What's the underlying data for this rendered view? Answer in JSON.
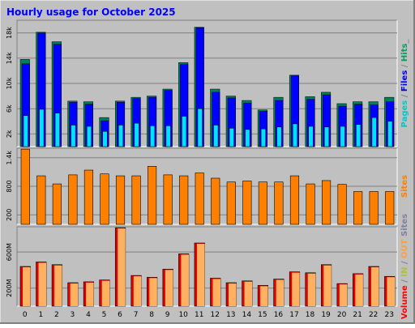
{
  "chart_data": {
    "type": "bar",
    "title": "Hourly usage for October 2025",
    "categories": [
      "0",
      "1",
      "2",
      "3",
      "4",
      "5",
      "6",
      "7",
      "8",
      "9",
      "10",
      "11",
      "12",
      "13",
      "14",
      "15",
      "16",
      "17",
      "18",
      "19",
      "20",
      "21",
      "22",
      "23"
    ],
    "panels": [
      {
        "name": "hits-files-pages",
        "ylim": [
          0,
          20000
        ],
        "yticks": [
          "2k",
          "6k",
          "10k",
          "14k",
          "18k"
        ],
        "ytick_values": [
          2000,
          6000,
          10000,
          14000,
          18000
        ],
        "side_label": [
          {
            "text": "Pages",
            "color": "#00c8c8"
          },
          {
            "text": " / ",
            "color": "#8080a0"
          },
          {
            "text": "Files",
            "color": "#0000ff"
          },
          {
            "text": " / ",
            "color": "#8080a0"
          },
          {
            "text": "Hits",
            "color": "#00a060"
          },
          {
            "text": "_",
            "color": "#8080a0"
          }
        ],
        "series": [
          {
            "name": "Hits",
            "color": "#00805a",
            "values": [
              13800,
              18100,
              16600,
              7200,
              7100,
              4600,
              7200,
              7800,
              8000,
              9100,
              13300,
              18900,
              9100,
              8000,
              7300,
              5800,
              7800,
              11300,
              7900,
              8600,
              6800,
              7100,
              7100,
              7800
            ]
          },
          {
            "name": "Files",
            "color": "#0000ff",
            "values": [
              13100,
              18000,
              16200,
              7000,
              6700,
              4100,
              7000,
              7600,
              7800,
              8900,
              13000,
              18800,
              8600,
              7700,
              6900,
              5600,
              7300,
              11200,
              7500,
              8200,
              6400,
              6700,
              6600,
              7100
            ]
          },
          {
            "name": "Pages",
            "color": "#00e0ff",
            "values": [
              4900,
              5900,
              5300,
              3400,
              3200,
              2400,
              3400,
              3700,
              3300,
              3300,
              4800,
              6000,
              3400,
              2900,
              2700,
              2800,
              3100,
              3600,
              3200,
              3100,
              3200,
              3500,
              4600,
              4000
            ]
          }
        ]
      },
      {
        "name": "sites",
        "ylim": [
          0,
          1600
        ],
        "yticks": [
          "200",
          "800",
          "1.4k"
        ],
        "ytick_values": [
          200,
          800,
          1400
        ],
        "side_label": [
          {
            "text": "Sites",
            "color": "#ff8000"
          }
        ],
        "series": [
          {
            "name": "Sites",
            "color": "#ff8000",
            "values": [
              1580,
              1020,
              850,
              1040,
              1140,
              1060,
              1020,
              1020,
              1220,
              1040,
              1020,
              1080,
              970,
              890,
              910,
              890,
              890,
              1020,
              850,
              920,
              840,
              690,
              690,
              690
            ]
          }
        ]
      },
      {
        "name": "volume",
        "ylim": [
          0,
          880
        ],
        "yticks": [
          "200M",
          "600M"
        ],
        "ytick_values": [
          200,
          600
        ],
        "side_label": [
          {
            "text": "Volume",
            "color": "#ff0000"
          },
          {
            "text": " / ",
            "color": "#8080a0"
          },
          {
            "text": "IN",
            "color": "#b0c040"
          },
          {
            "text": " / ",
            "color": "#8080a0"
          },
          {
            "text": "OUT",
            "color": "#ffa040"
          },
          {
            "text": " Sites",
            "color": "#8080a0"
          }
        ],
        "series": [
          {
            "name": "Volume",
            "color": "#ff0000",
            "values": [
              440,
              490,
              460,
              260,
              270,
              290,
              870,
              340,
              320,
              410,
              580,
              700,
              310,
              260,
              280,
              230,
              300,
              380,
              370,
              460,
              250,
              360,
              440,
              330
            ]
          }
        ]
      }
    ],
    "colors": {
      "page_bg": "#c0c0c0",
      "panel_bg": "#c0c0c0",
      "grid": "#808080",
      "title": "#0000ff",
      "border_light": "#ffffff",
      "border_dark": "#808080",
      "sites_bar": "#ff8000",
      "volume_back": "#e00000",
      "volume_front": "#ffb060"
    }
  }
}
